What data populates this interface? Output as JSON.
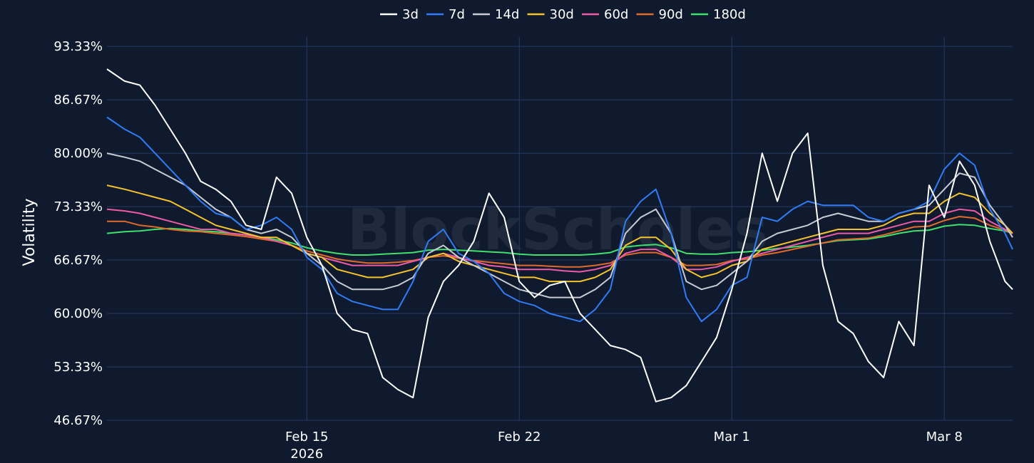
{
  "chart_data": {
    "type": "line",
    "ylabel": "Volatility",
    "watermark": "BlockScholes",
    "ylim": [
      46.67,
      94.5
    ],
    "y_ticks": [
      "93.33%",
      "86.67%",
      "80.00%",
      "73.33%",
      "66.67%",
      "60.00%",
      "53.33%",
      "46.67%"
    ],
    "y_tick_values": [
      93.33,
      86.67,
      80.0,
      73.33,
      66.67,
      60.0,
      53.33,
      46.67
    ],
    "x_ticks": [
      {
        "date": "2026-02-15",
        "label": "Feb 15",
        "sublabel": "2026"
      },
      {
        "date": "2026-02-22",
        "label": "Feb 22",
        "sublabel": ""
      },
      {
        "date": "2026-03-01",
        "label": "Mar 1",
        "sublabel": ""
      },
      {
        "date": "2026-03-08",
        "label": "Mar 8",
        "sublabel": ""
      }
    ],
    "xlim": [
      "2026-02-08 10:00",
      "2026-03-10 06:00"
    ],
    "grid": true,
    "legend_position": "top",
    "x": [
      "2026-02-08 10:00",
      "2026-02-09 00:00",
      "2026-02-09 12:00",
      "2026-02-10 00:00",
      "2026-02-10 12:00",
      "2026-02-11 00:00",
      "2026-02-11 12:00",
      "2026-02-12 00:00",
      "2026-02-12 12:00",
      "2026-02-13 00:00",
      "2026-02-13 12:00",
      "2026-02-14 00:00",
      "2026-02-14 12:00",
      "2026-02-15 00:00",
      "2026-02-15 12:00",
      "2026-02-16 00:00",
      "2026-02-16 12:00",
      "2026-02-17 00:00",
      "2026-02-17 12:00",
      "2026-02-18 00:00",
      "2026-02-18 12:00",
      "2026-02-19 00:00",
      "2026-02-19 12:00",
      "2026-02-20 00:00",
      "2026-02-20 12:00",
      "2026-02-21 00:00",
      "2026-02-21 12:00",
      "2026-02-22 00:00",
      "2026-02-22 12:00",
      "2026-02-23 00:00",
      "2026-02-23 12:00",
      "2026-02-24 00:00",
      "2026-02-24 12:00",
      "2026-02-25 00:00",
      "2026-02-25 12:00",
      "2026-02-26 00:00",
      "2026-02-26 12:00",
      "2026-02-27 00:00",
      "2026-02-27 12:00",
      "2026-02-28 00:00",
      "2026-02-28 12:00",
      "2026-03-01 00:00",
      "2026-03-01 12:00",
      "2026-03-02 00:00",
      "2026-03-02 12:00",
      "2026-03-03 00:00",
      "2026-03-03 12:00",
      "2026-03-04 00:00",
      "2026-03-04 12:00",
      "2026-03-05 00:00",
      "2026-03-05 12:00",
      "2026-03-06 00:00",
      "2026-03-06 12:00",
      "2026-03-07 00:00",
      "2026-03-07 12:00",
      "2026-03-08 00:00",
      "2026-03-08 12:00",
      "2026-03-09 00:00",
      "2026-03-09 12:00",
      "2026-03-10 00:00",
      "2026-03-10 06:00"
    ],
    "series": [
      {
        "name": "3d",
        "color": "#ffffff",
        "values": [
          90.5,
          89.0,
          88.5,
          86.0,
          83.0,
          80.0,
          76.5,
          75.5,
          74.0,
          71.0,
          70.5,
          77.0,
          75.0,
          69.5,
          66.0,
          60.0,
          58.0,
          57.5,
          52.0,
          50.5,
          49.5,
          59.5,
          64.0,
          66.0,
          69.0,
          75.0,
          72.0,
          64.0,
          62.0,
          63.5,
          64.0,
          60.0,
          58.0,
          56.0,
          55.5,
          54.5,
          49.0,
          49.5,
          51.0,
          54.0,
          57.0,
          63.0,
          70.0,
          80.0,
          74.0,
          80.0,
          82.5,
          66.0,
          59.0,
          57.5,
          54.0,
          52.0,
          59.0,
          56.0,
          76.0,
          72.0,
          79.0,
          76.0,
          69.0,
          64.0,
          63.0
        ]
      },
      {
        "name": "7d",
        "color": "#2f7cf6",
        "values": [
          84.5,
          83.0,
          82.0,
          80.0,
          78.0,
          76.0,
          74.0,
          72.5,
          72.0,
          70.5,
          71.0,
          72.0,
          70.5,
          67.0,
          65.5,
          62.5,
          61.5,
          61.0,
          60.5,
          60.5,
          64.0,
          69.0,
          70.5,
          67.5,
          66.5,
          65.0,
          62.5,
          61.5,
          61.0,
          60.0,
          59.5,
          59.0,
          60.5,
          63.0,
          71.5,
          74.0,
          75.5,
          70.0,
          62.0,
          59.0,
          60.5,
          63.5,
          64.5,
          72.0,
          71.5,
          73.0,
          74.0,
          73.5,
          73.5,
          73.5,
          72.0,
          71.5,
          72.5,
          73.0,
          74.0,
          78.0,
          80.0,
          78.5,
          73.0,
          70.0,
          68.0
        ]
      },
      {
        "name": "14d",
        "color": "#c8ccd4",
        "values": [
          80.0,
          79.5,
          79.0,
          78.0,
          77.0,
          76.0,
          74.5,
          73.0,
          72.0,
          70.5,
          70.0,
          70.5,
          69.5,
          67.5,
          66.0,
          64.0,
          63.0,
          63.0,
          63.0,
          63.5,
          64.5,
          67.5,
          68.5,
          67.0,
          66.0,
          65.0,
          64.0,
          63.0,
          62.5,
          62.0,
          62.0,
          62.0,
          63.0,
          64.5,
          70.0,
          72.0,
          73.0,
          70.0,
          64.0,
          63.0,
          63.5,
          65.0,
          66.5,
          69.0,
          70.0,
          70.5,
          71.0,
          72.0,
          72.5,
          72.0,
          71.5,
          71.5,
          72.5,
          73.0,
          73.5,
          75.5,
          77.5,
          77.0,
          73.5,
          71.0,
          69.5
        ]
      },
      {
        "name": "30d",
        "color": "#f6c32c",
        "values": [
          76.0,
          75.5,
          75.0,
          74.5,
          74.0,
          73.0,
          72.0,
          71.0,
          70.5,
          70.0,
          69.5,
          69.5,
          68.5,
          67.5,
          67.0,
          65.5,
          65.0,
          64.5,
          64.5,
          65.0,
          65.5,
          67.0,
          67.5,
          66.5,
          66.0,
          65.5,
          65.0,
          64.5,
          64.5,
          64.0,
          64.0,
          64.0,
          64.5,
          65.5,
          68.5,
          69.5,
          69.5,
          68.0,
          65.5,
          64.5,
          65.0,
          66.0,
          66.5,
          68.0,
          68.5,
          69.0,
          69.5,
          70.0,
          70.5,
          70.5,
          70.5,
          71.0,
          72.0,
          72.5,
          72.5,
          74.0,
          75.0,
          74.5,
          72.5,
          71.0,
          70.0
        ]
      },
      {
        "name": "60d",
        "color": "#ee5aa6",
        "values": [
          73.0,
          72.8,
          72.5,
          72.0,
          71.5,
          71.0,
          70.5,
          70.5,
          70.0,
          69.8,
          69.5,
          69.0,
          68.5,
          67.5,
          67.0,
          66.5,
          66.0,
          66.0,
          66.0,
          66.0,
          66.5,
          67.0,
          67.5,
          67.0,
          66.5,
          66.0,
          65.8,
          65.5,
          65.5,
          65.5,
          65.3,
          65.2,
          65.5,
          66.0,
          67.5,
          68.0,
          68.0,
          67.0,
          65.5,
          65.5,
          65.8,
          66.5,
          67.0,
          67.5,
          68.0,
          68.5,
          69.0,
          69.5,
          70.0,
          70.0,
          70.0,
          70.5,
          71.0,
          71.5,
          71.5,
          72.5,
          73.0,
          72.8,
          71.5,
          70.5,
          70.0
        ]
      },
      {
        "name": "90d",
        "color": "#e06a2a",
        "values": [
          71.5,
          71.5,
          71.0,
          70.8,
          70.5,
          70.3,
          70.2,
          70.0,
          69.8,
          69.6,
          69.3,
          69.0,
          68.5,
          67.8,
          67.3,
          66.8,
          66.5,
          66.3,
          66.3,
          66.4,
          66.6,
          67.0,
          67.2,
          66.9,
          66.6,
          66.4,
          66.2,
          66.0,
          66.0,
          65.9,
          65.8,
          65.8,
          66.0,
          66.3,
          67.3,
          67.6,
          67.6,
          67.0,
          66.0,
          66.0,
          66.1,
          66.6,
          66.8,
          67.3,
          67.6,
          68.0,
          68.4,
          68.8,
          69.2,
          69.3,
          69.4,
          69.8,
          70.3,
          70.8,
          70.9,
          71.6,
          72.1,
          71.9,
          71.0,
          70.4,
          70.0
        ]
      },
      {
        "name": "180d",
        "color": "#3ee26a",
        "values": [
          70.0,
          70.2,
          70.3,
          70.5,
          70.6,
          70.5,
          70.3,
          70.2,
          70.0,
          69.8,
          69.5,
          69.2,
          68.8,
          68.2,
          67.8,
          67.5,
          67.3,
          67.3,
          67.4,
          67.5,
          67.6,
          67.9,
          68.0,
          67.9,
          67.8,
          67.7,
          67.6,
          67.4,
          67.3,
          67.3,
          67.3,
          67.3,
          67.4,
          67.6,
          68.3,
          68.5,
          68.6,
          68.2,
          67.5,
          67.4,
          67.4,
          67.6,
          67.7,
          67.9,
          68.1,
          68.3,
          68.5,
          68.8,
          69.1,
          69.2,
          69.3,
          69.6,
          70.0,
          70.3,
          70.4,
          70.9,
          71.1,
          71.0,
          70.6,
          70.3,
          70.0
        ]
      }
    ]
  }
}
